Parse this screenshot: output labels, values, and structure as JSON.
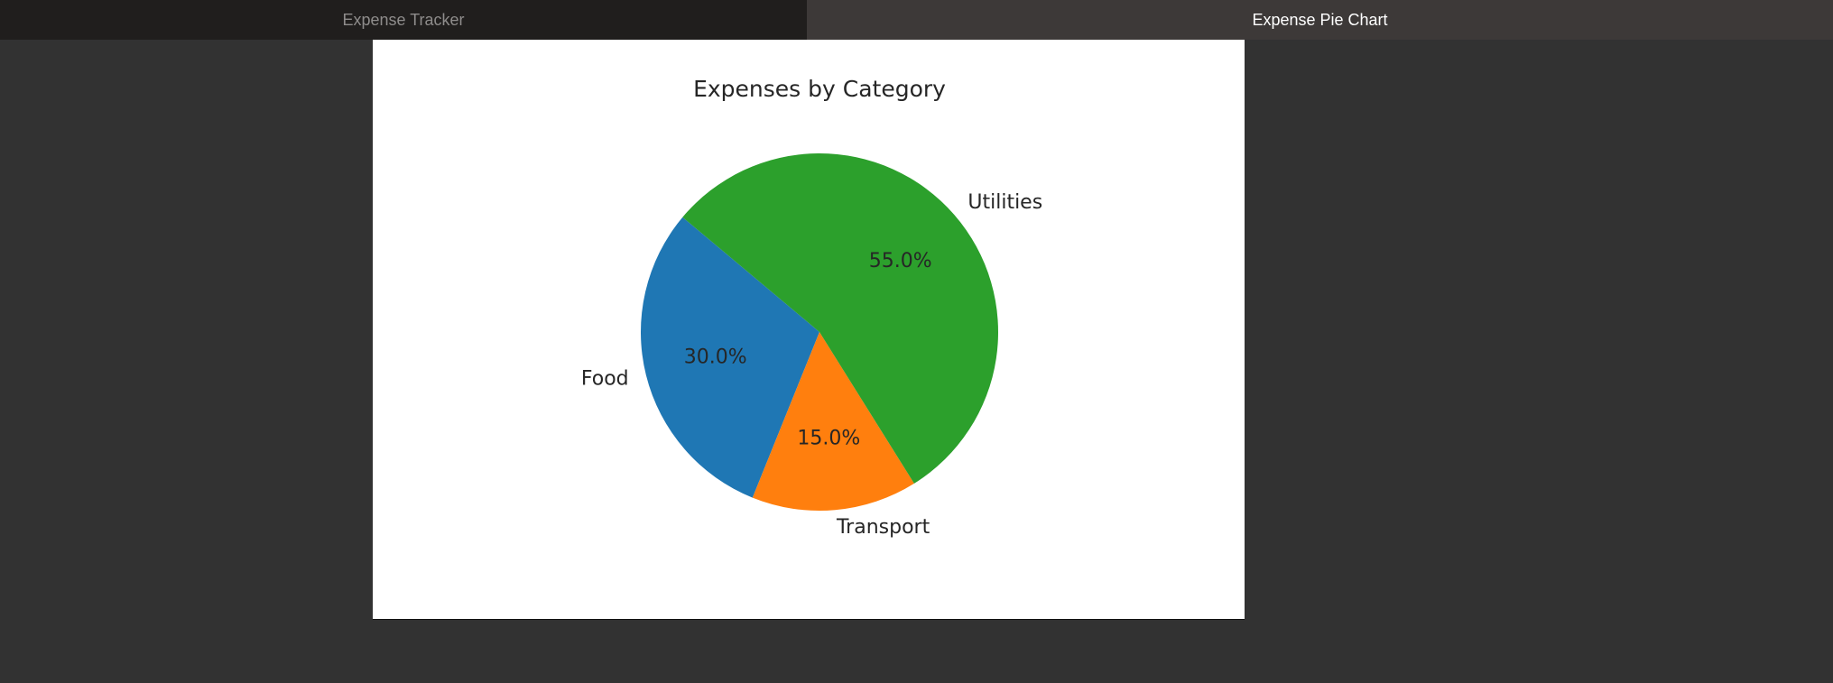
{
  "tabs": [
    {
      "label": "Expense Tracker",
      "active": false
    },
    {
      "label": "Expense Pie Chart",
      "active": true
    }
  ],
  "chart_data": {
    "type": "pie",
    "title": "Expenses by Category",
    "categories": [
      "Food",
      "Transport",
      "Utilities"
    ],
    "values": [
      30.0,
      15.0,
      55.0
    ],
    "percent_labels": [
      "30.0%",
      "15.0%",
      "55.0%"
    ],
    "colors": [
      "#1f77b4",
      "#ff7f0e",
      "#2ca02c"
    ],
    "start_angle_deg": 140,
    "legend": "none"
  }
}
